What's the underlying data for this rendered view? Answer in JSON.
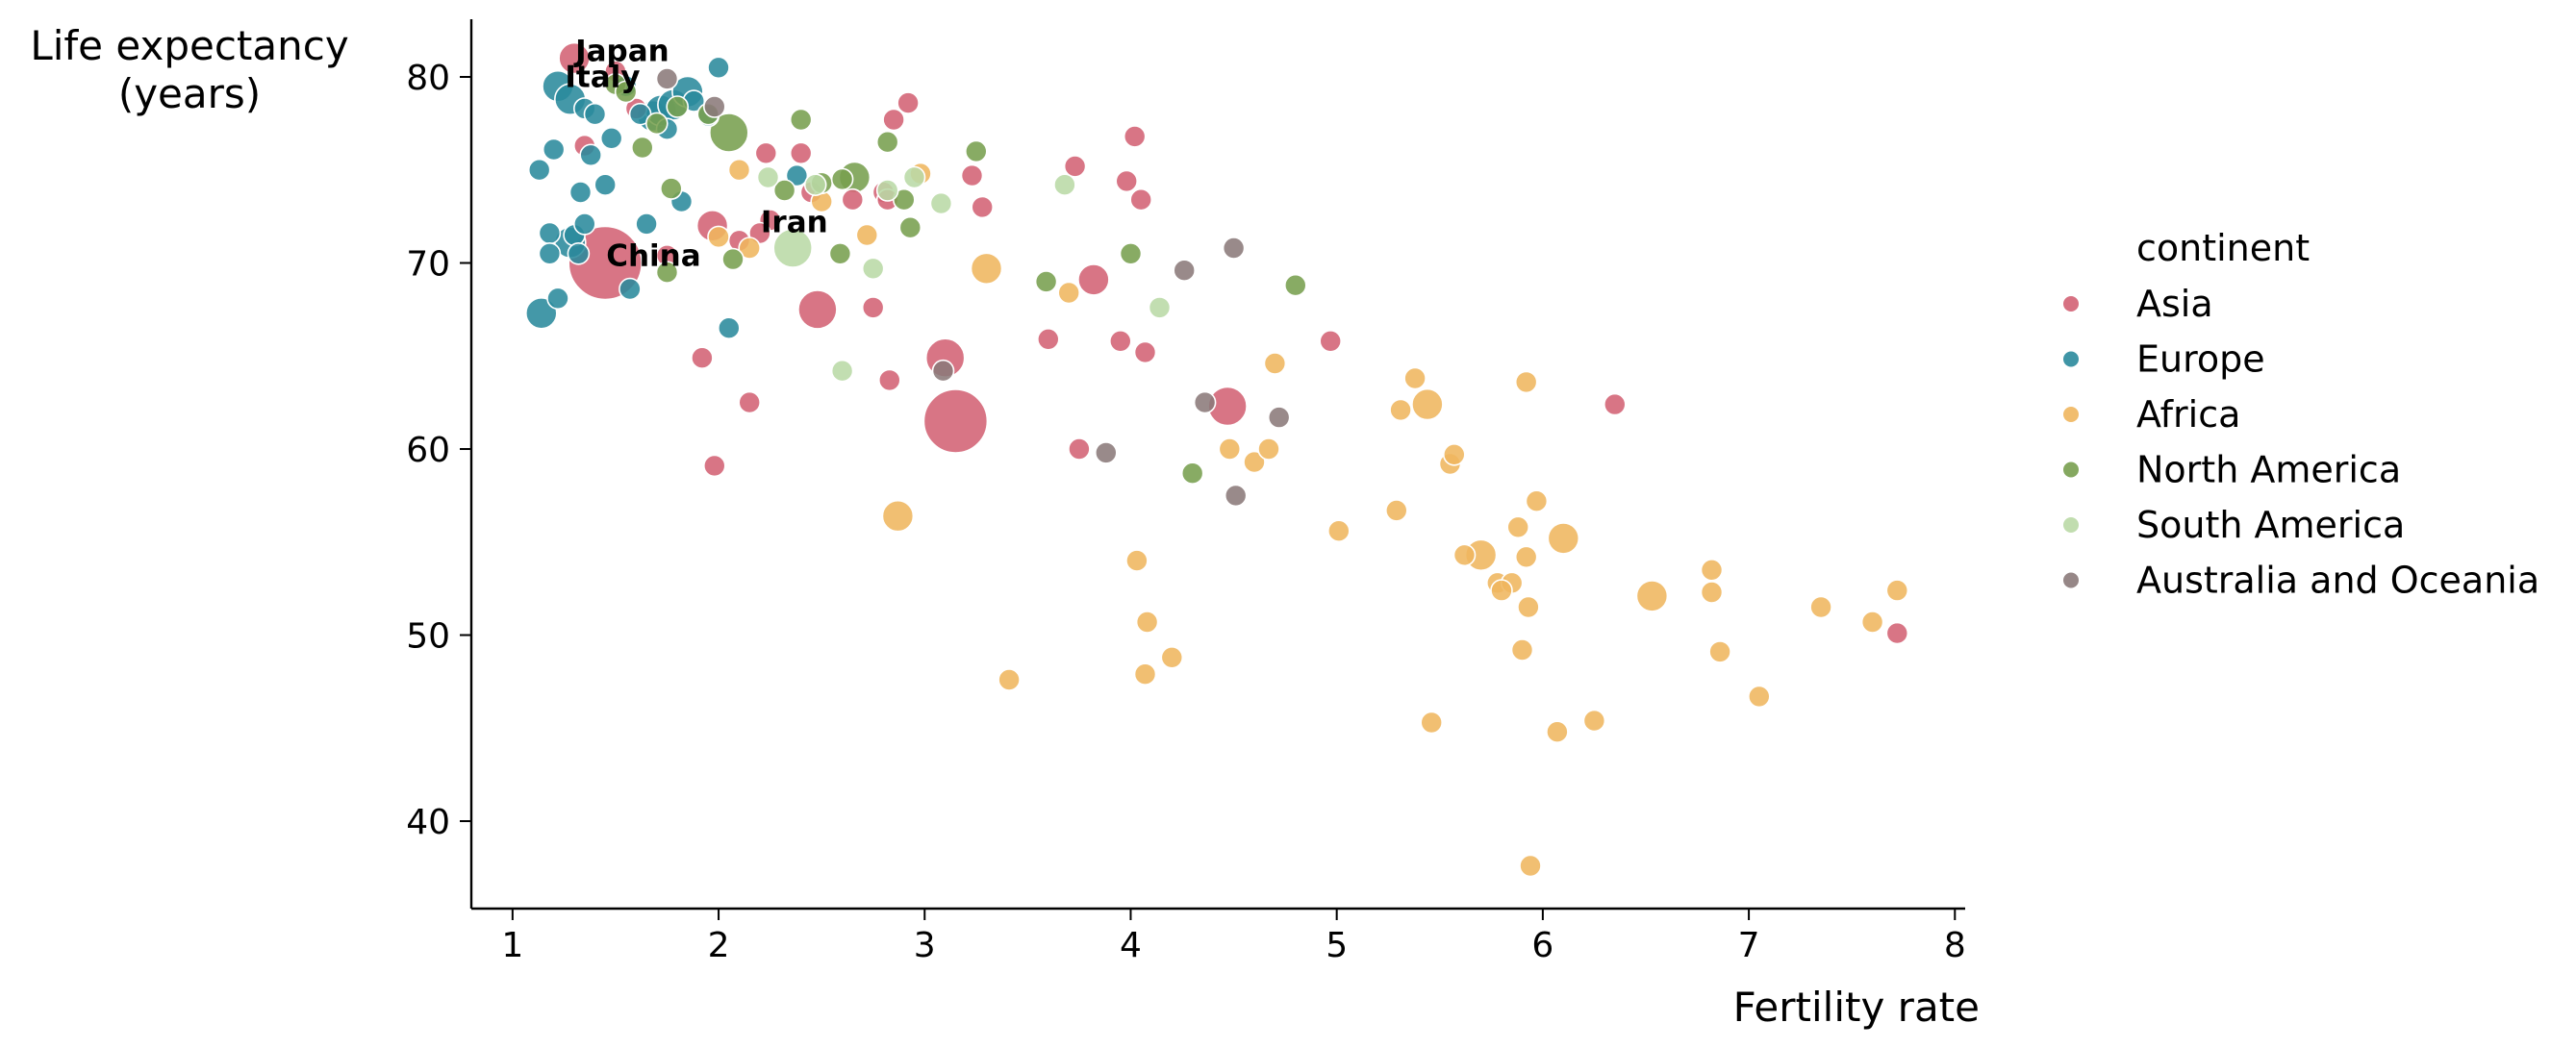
{
  "chart_data": {
    "type": "scatter",
    "title": "",
    "xlabel": "Fertility rate",
    "ylabel_lines": [
      "Life expectancy",
      "(years)"
    ],
    "xlim": [
      0.8,
      8.05
    ],
    "ylim": [
      35.3,
      83.1
    ],
    "xticks": [
      1,
      2,
      3,
      4,
      5,
      6,
      7,
      8
    ],
    "yticks": [
      40,
      50,
      60,
      70,
      80
    ],
    "grid": false,
    "legend": {
      "title": "continent",
      "placement": "right",
      "entries": [
        "Asia",
        "Europe",
        "Africa",
        "North America",
        "South America",
        "Australia and Oceania"
      ]
    },
    "colors": {
      "Asia": "#d36274",
      "Europe": "#2a8a9c",
      "Africa": "#efb65e",
      "North America": "#789f4f",
      "South America": "#bad9a6",
      "Australia and Oceania": "#8b7a7a"
    },
    "annotations": [
      {
        "text": "Japan",
        "x": 1.3,
        "y": 81.0
      },
      {
        "text": "Italy",
        "x": 1.25,
        "y": 79.6
      },
      {
        "text": "Iran",
        "x": 2.2,
        "y": 71.8
      },
      {
        "text": "China",
        "x": 1.45,
        "y": 70.0
      }
    ],
    "series": [
      {
        "name": "Asia",
        "points": [
          [
            1.3,
            81.0,
            2
          ],
          [
            1.45,
            70.0,
            8
          ],
          [
            3.15,
            61.5,
            6
          ],
          [
            2.48,
            67.5,
            3
          ],
          [
            3.1,
            64.9,
            3
          ],
          [
            4.47,
            62.3,
            3
          ],
          [
            1.5,
            80.3,
            1
          ],
          [
            1.6,
            78.3,
            1
          ],
          [
            1.35,
            76.3,
            1
          ],
          [
            2.23,
            75.9,
            1
          ],
          [
            2.4,
            75.9,
            1
          ],
          [
            2.85,
            77.7,
            1
          ],
          [
            2.92,
            78.6,
            1
          ],
          [
            3.73,
            75.2,
            1
          ],
          [
            3.23,
            74.7,
            1
          ],
          [
            3.28,
            73.0,
            1
          ],
          [
            2.45,
            73.8,
            1
          ],
          [
            2.65,
            73.4,
            1
          ],
          [
            2.8,
            73.8,
            1
          ],
          [
            2.82,
            73.4,
            1
          ],
          [
            1.97,
            72.0,
            2
          ],
          [
            2.1,
            71.2,
            1
          ],
          [
            2.25,
            72.3,
            1
          ],
          [
            2.2,
            71.6,
            1
          ],
          [
            3.98,
            74.4,
            1
          ],
          [
            4.02,
            76.8,
            1
          ],
          [
            4.05,
            73.4,
            1
          ],
          [
            3.82,
            69.1,
            2
          ],
          [
            1.92,
            64.9,
            1
          ],
          [
            2.15,
            62.5,
            1
          ],
          [
            1.98,
            59.1,
            1
          ],
          [
            2.75,
            67.6,
            1
          ],
          [
            2.83,
            63.7,
            1
          ],
          [
            3.6,
            65.9,
            1
          ],
          [
            3.95,
            65.8,
            1
          ],
          [
            4.07,
            65.2,
            1
          ],
          [
            3.75,
            60.0,
            1
          ],
          [
            4.97,
            65.8,
            1
          ],
          [
            6.35,
            62.4,
            1
          ],
          [
            7.72,
            50.1,
            1
          ],
          [
            1.75,
            70.4,
            1
          ]
        ]
      },
      {
        "name": "Europe",
        "points": [
          [
            1.22,
            79.5,
            2
          ],
          [
            1.28,
            78.8,
            2
          ],
          [
            1.35,
            78.3,
            1
          ],
          [
            1.4,
            78.0,
            1
          ],
          [
            1.62,
            78.0,
            1
          ],
          [
            1.68,
            77.9,
            2
          ],
          [
            1.72,
            78.2,
            2
          ],
          [
            1.78,
            78.5,
            2
          ],
          [
            1.85,
            79.2,
            2
          ],
          [
            1.88,
            78.7,
            1
          ],
          [
            1.95,
            77.9,
            1
          ],
          [
            2.0,
            80.5,
            1
          ],
          [
            1.55,
            79.5,
            1
          ],
          [
            1.75,
            77.2,
            1
          ],
          [
            1.48,
            76.7,
            1
          ],
          [
            1.38,
            75.8,
            1
          ],
          [
            1.13,
            75.0,
            1
          ],
          [
            1.2,
            76.1,
            1
          ],
          [
            1.45,
            74.2,
            1
          ],
          [
            1.33,
            73.8,
            1
          ],
          [
            1.82,
            73.3,
            1
          ],
          [
            1.18,
            71.6,
            1
          ],
          [
            1.3,
            71.5,
            1
          ],
          [
            1.35,
            72.1,
            1
          ],
          [
            1.28,
            71.1,
            2
          ],
          [
            1.32,
            70.5,
            1
          ],
          [
            1.65,
            72.1,
            1
          ],
          [
            1.18,
            70.5,
            1
          ],
          [
            1.22,
            68.1,
            1
          ],
          [
            1.14,
            67.3,
            2
          ],
          [
            1.57,
            68.6,
            1
          ],
          [
            2.05,
            66.5,
            1
          ],
          [
            2.38,
            74.7,
            1
          ]
        ]
      },
      {
        "name": "Africa",
        "points": [
          [
            2.1,
            75.0,
            1
          ],
          [
            2.98,
            74.8,
            1
          ],
          [
            2.72,
            71.5,
            1
          ],
          [
            3.3,
            69.7,
            2
          ],
          [
            2.0,
            71.4,
            1
          ],
          [
            2.15,
            70.8,
            1
          ],
          [
            3.7,
            68.4,
            1
          ],
          [
            4.7,
            64.6,
            1
          ],
          [
            5.38,
            63.8,
            1
          ],
          [
            5.31,
            62.1,
            1
          ],
          [
            5.44,
            62.4,
            2
          ],
          [
            5.92,
            63.6,
            1
          ],
          [
            4.48,
            60.0,
            1
          ],
          [
            4.6,
            59.3,
            1
          ],
          [
            4.67,
            60.0,
            1
          ],
          [
            5.55,
            59.2,
            1
          ],
          [
            5.57,
            59.7,
            1
          ],
          [
            5.01,
            55.6,
            1
          ],
          [
            5.29,
            56.7,
            1
          ],
          [
            5.97,
            57.2,
            1
          ],
          [
            5.88,
            55.8,
            1
          ],
          [
            6.1,
            55.2,
            2
          ],
          [
            5.62,
            54.3,
            1
          ],
          [
            5.7,
            54.3,
            2
          ],
          [
            5.78,
            52.8,
            1
          ],
          [
            5.85,
            52.8,
            1
          ],
          [
            5.92,
            54.2,
            1
          ],
          [
            5.8,
            52.4,
            1
          ],
          [
            5.93,
            51.5,
            1
          ],
          [
            6.53,
            52.1,
            2
          ],
          [
            6.82,
            53.5,
            1
          ],
          [
            6.82,
            52.3,
            1
          ],
          [
            7.35,
            51.5,
            1
          ],
          [
            7.6,
            50.7,
            1
          ],
          [
            7.72,
            52.4,
            1
          ],
          [
            6.86,
            49.1,
            1
          ],
          [
            5.9,
            49.2,
            1
          ],
          [
            7.05,
            46.7,
            1
          ],
          [
            4.08,
            50.7,
            1
          ],
          [
            4.2,
            48.8,
            1
          ],
          [
            4.07,
            47.9,
            1
          ],
          [
            4.03,
            54.0,
            1
          ],
          [
            3.41,
            47.6,
            1
          ],
          [
            5.46,
            45.3,
            1
          ],
          [
            6.07,
            44.8,
            1
          ],
          [
            6.25,
            45.4,
            1
          ],
          [
            5.94,
            37.6,
            1
          ],
          [
            2.87,
            56.4,
            2
          ],
          [
            2.5,
            73.3,
            1
          ]
        ]
      },
      {
        "name": "North America",
        "points": [
          [
            2.05,
            77.0,
            3
          ],
          [
            1.5,
            79.6,
            1
          ],
          [
            1.55,
            79.2,
            1
          ],
          [
            1.7,
            77.5,
            1
          ],
          [
            1.8,
            78.4,
            1
          ],
          [
            1.95,
            78.0,
            1
          ],
          [
            2.4,
            77.7,
            1
          ],
          [
            2.82,
            76.5,
            1
          ],
          [
            3.25,
            76.0,
            1
          ],
          [
            1.63,
            76.2,
            1
          ],
          [
            1.77,
            74.0,
            1
          ],
          [
            2.32,
            73.9,
            1
          ],
          [
            2.5,
            74.3,
            1
          ],
          [
            2.6,
            74.5,
            1
          ],
          [
            2.66,
            74.6,
            2
          ],
          [
            2.9,
            73.4,
            1
          ],
          [
            2.93,
            71.9,
            1
          ],
          [
            2.07,
            70.2,
            1
          ],
          [
            2.59,
            70.5,
            1
          ],
          [
            1.75,
            69.5,
            1
          ],
          [
            3.59,
            69.0,
            1
          ],
          [
            4.0,
            70.5,
            1
          ],
          [
            4.8,
            68.8,
            1
          ],
          [
            4.3,
            58.7,
            1
          ]
        ]
      },
      {
        "name": "South America",
        "points": [
          [
            2.24,
            74.6,
            1
          ],
          [
            2.47,
            74.2,
            1
          ],
          [
            2.82,
            73.9,
            1
          ],
          [
            2.95,
            74.6,
            1
          ],
          [
            3.08,
            73.2,
            1
          ],
          [
            3.68,
            74.2,
            1
          ],
          [
            2.36,
            70.8,
            3
          ],
          [
            2.75,
            69.7,
            1
          ],
          [
            4.14,
            67.6,
            1
          ],
          [
            2.6,
            64.2,
            1
          ]
        ]
      },
      {
        "name": "Australia and Oceania",
        "points": [
          [
            1.75,
            79.9,
            1
          ],
          [
            1.98,
            78.4,
            1
          ],
          [
            3.09,
            64.2,
            1
          ],
          [
            4.26,
            69.6,
            1
          ],
          [
            4.5,
            70.8,
            1
          ],
          [
            4.36,
            62.5,
            1
          ],
          [
            4.72,
            61.7,
            1
          ],
          [
            3.88,
            59.8,
            1
          ],
          [
            4.51,
            57.5,
            1
          ]
        ]
      }
    ]
  }
}
